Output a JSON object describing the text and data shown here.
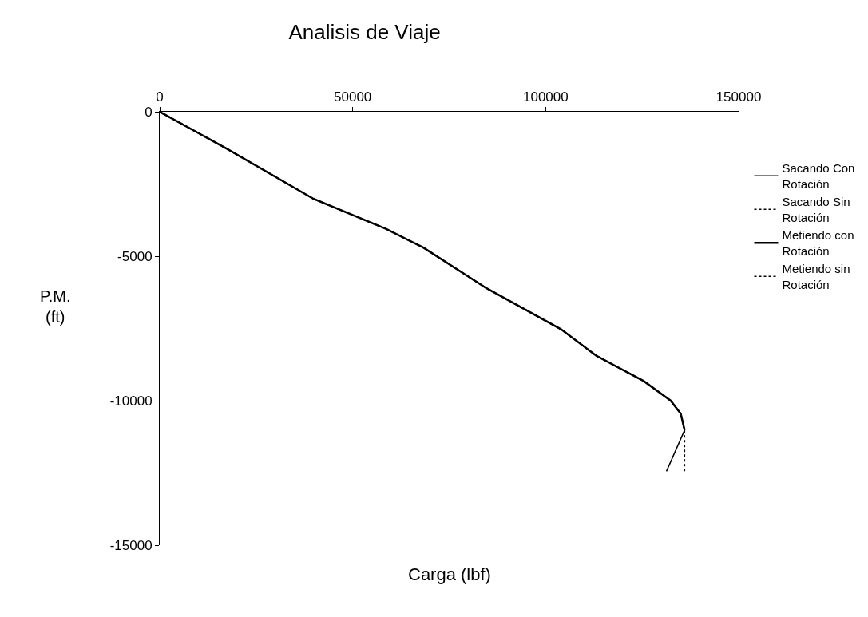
{
  "chart_data": {
    "type": "line",
    "title": "Analisis de Viaje",
    "xlabel": "Carga (lbf)",
    "ylabel": "P.M. (ft)",
    "xlim": [
      0,
      150000
    ],
    "xticks": [
      0,
      50000,
      100000,
      150000
    ],
    "ylim": [
      -15000,
      0
    ],
    "yticks": [
      0,
      -5000,
      -10000,
      -15000
    ],
    "grid": false,
    "legend": "right",
    "marker": "none",
    "series": [
      {
        "name": "Sacando Con Rotación",
        "color": "#000000",
        "line_style": "solid",
        "x": [
          0,
          17400,
          39800,
          58600,
          68300,
          84700,
          104000,
          113200,
          125400,
          132400,
          135000,
          136000,
          131300
        ],
        "values": [
          0,
          -1280,
          -3010,
          -4050,
          -4700,
          -6110,
          -7530,
          -8450,
          -9320,
          -10000,
          -10450,
          -11020,
          -12440
        ]
      },
      {
        "name": "Sacando Sin Rotación",
        "color": "#000000",
        "line_style": "dotted",
        "x": [
          132400,
          135000,
          136000,
          136000
        ],
        "values": [
          -10000,
          -10450,
          -11020,
          -12440
        ]
      },
      {
        "name": "Metiendo con Rotación",
        "color": "#000000",
        "line_style": "solid",
        "x": [
          0,
          17400,
          39800,
          58600,
          68300,
          84700,
          104000,
          113200,
          125400,
          132400,
          135000,
          136000
        ],
        "values": [
          0,
          -1280,
          -3010,
          -4050,
          -4700,
          -6110,
          -7530,
          -8450,
          -9320,
          -10000,
          -10450,
          -11020
        ]
      },
      {
        "name": "Metiendo sin Rotación",
        "color": "#000000",
        "line_style": "dotted",
        "x": [
          0,
          17400,
          39800,
          58600,
          68300,
          84700,
          104000,
          113200,
          125400
        ],
        "values": [
          0,
          -1280,
          -3010,
          -4050,
          -4700,
          -6110,
          -7530,
          -8450,
          -9320
        ]
      }
    ]
  }
}
